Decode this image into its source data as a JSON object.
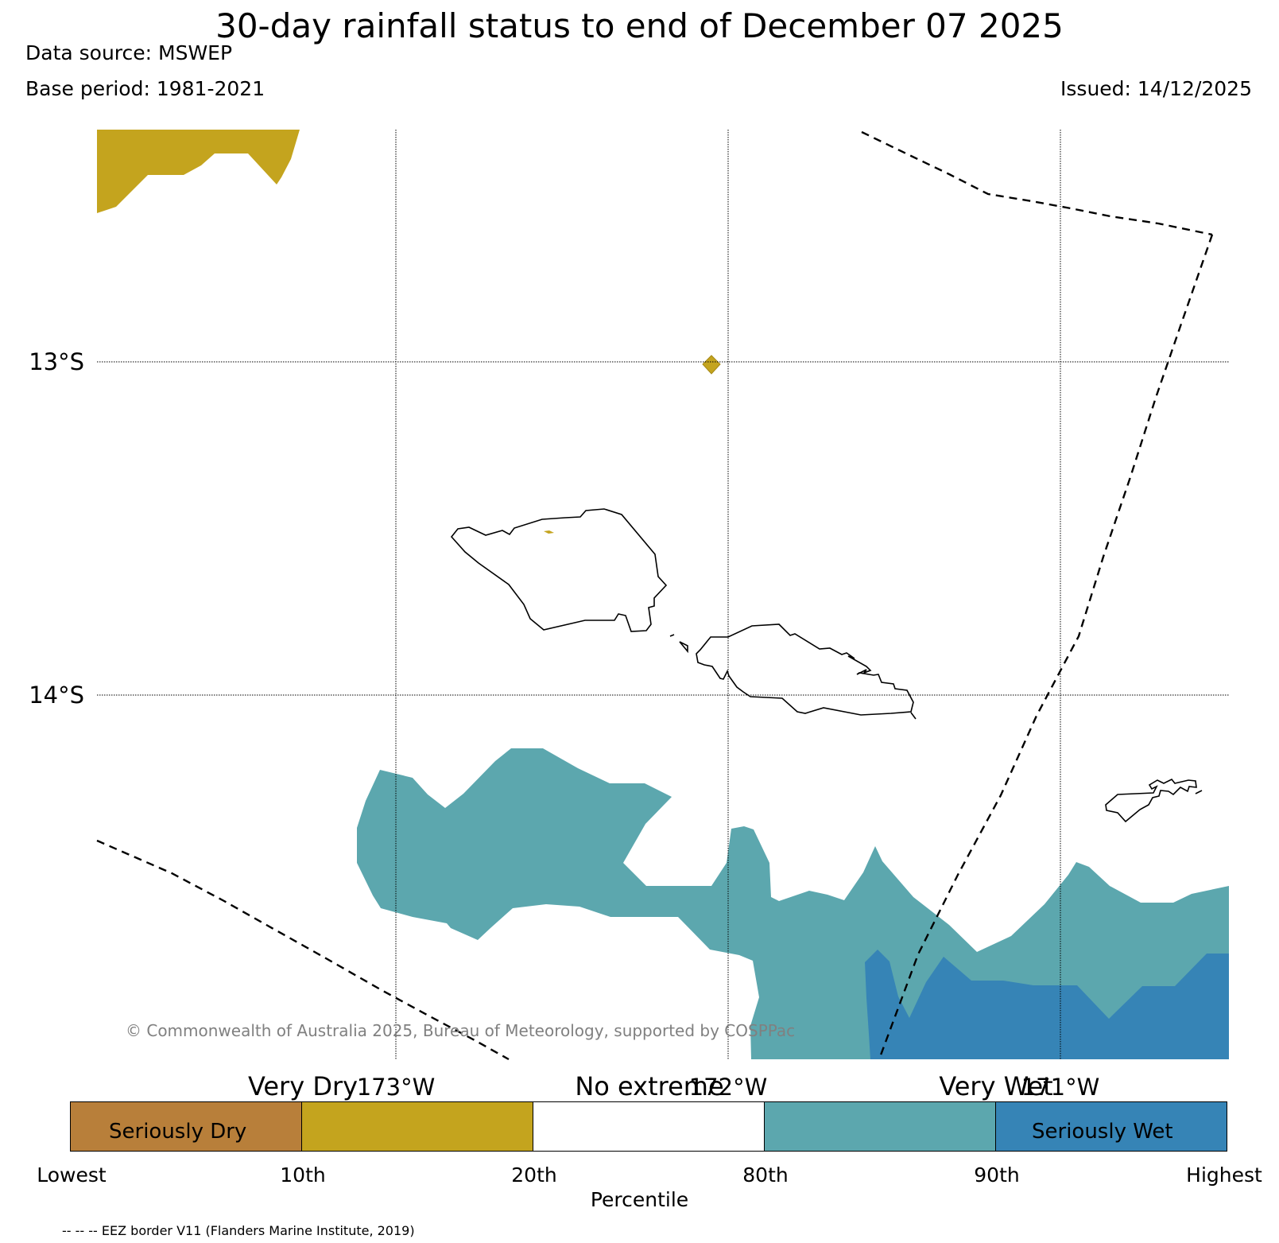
{
  "header": {
    "title": "30-day rainfall status to end of December 07 2025",
    "data_source": "Data source: MSWEP",
    "base_period": "Base period: 1981-2021",
    "issued": "Issued: 14/12/2025"
  },
  "map": {
    "lat_labels": [
      "13°S",
      "14°S"
    ],
    "lon_labels": [
      "173°W",
      "172°W",
      "171°W"
    ],
    "copyright": "© Commonwealth of Australia 2025, Bureau of Meteorology, supported by COSPPac",
    "colors": {
      "seriously_dry": "#b87f3a",
      "very_dry": "#c4a41e",
      "no_extreme": "#ffffff",
      "very_wet": "#5ca7ae",
      "seriously_wet": "#3684b6"
    }
  },
  "legend": {
    "segments": [
      {
        "label": "Seriously Dry",
        "color": "#b87f3a"
      },
      {
        "label": "",
        "color": "#c4a41e"
      },
      {
        "label": "",
        "color": "#ffffff"
      },
      {
        "label": "",
        "color": "#5ca7ae"
      },
      {
        "label": "Seriously Wet",
        "color": "#3684b6"
      }
    ],
    "categories": [
      "Very Dry",
      "No extreme",
      "Very Wet"
    ],
    "ticks": [
      "Lowest",
      "10th",
      "20th",
      "80th",
      "90th",
      "Highest"
    ],
    "axis_title": "Percentile",
    "eez_note": "-- -- -- EEZ border V11 (Flanders Marine Institute, 2019)"
  }
}
